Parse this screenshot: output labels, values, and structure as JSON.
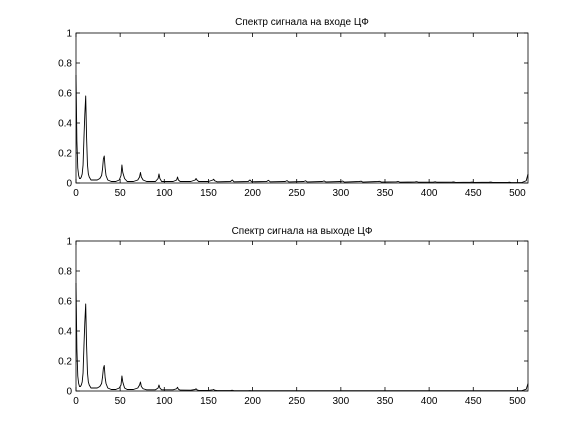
{
  "chart_data": [
    {
      "type": "line",
      "title": "Спектр сигнала на входе ЦФ",
      "xlim": [
        0,
        512
      ],
      "ylim": [
        0,
        1
      ],
      "x_ticks": [
        "0",
        "50",
        "100",
        "150",
        "200",
        "250",
        "300",
        "350",
        "400",
        "450",
        "500"
      ],
      "y_ticks": [
        "0",
        "0.2",
        "0.4",
        "0.6",
        "0.8",
        "1"
      ],
      "grid": false,
      "series": [
        {
          "values": [
            [
              0,
              0.72
            ],
            [
              1,
              0.28
            ],
            [
              2,
              0.1
            ],
            [
              3,
              0.05
            ],
            [
              4,
              0.03
            ],
            [
              5,
              0.03
            ],
            [
              6,
              0.04
            ],
            [
              7,
              0.06
            ],
            [
              8,
              0.12
            ],
            [
              9,
              0.3
            ],
            [
              10,
              0.46
            ],
            [
              11,
              0.58
            ],
            [
              12,
              0.3
            ],
            [
              13,
              0.12
            ],
            [
              14,
              0.06
            ],
            [
              15,
              0.04
            ],
            [
              17,
              0.02
            ],
            [
              20,
              0.02
            ],
            [
              24,
              0.02
            ],
            [
              27,
              0.03
            ],
            [
              29,
              0.05
            ],
            [
              30,
              0.09
            ],
            [
              31,
              0.16
            ],
            [
              32,
              0.18
            ],
            [
              33,
              0.1
            ],
            [
              34,
              0.05
            ],
            [
              36,
              0.02
            ],
            [
              40,
              0.01
            ],
            [
              45,
              0.01
            ],
            [
              49,
              0.02
            ],
            [
              51,
              0.05
            ],
            [
              52,
              0.12
            ],
            [
              53,
              0.07
            ],
            [
              55,
              0.03
            ],
            [
              58,
              0.01
            ],
            [
              65,
              0.01
            ],
            [
              70,
              0.02
            ],
            [
              72,
              0.04
            ],
            [
              73,
              0.07
            ],
            [
              74,
              0.04
            ],
            [
              76,
              0.02
            ],
            [
              80,
              0.01
            ],
            [
              90,
              0.01
            ],
            [
              93,
              0.03
            ],
            [
              94,
              0.06
            ],
            [
              95,
              0.03
            ],
            [
              97,
              0.01
            ],
            [
              110,
              0.01
            ],
            [
              114,
              0.02
            ],
            [
              115,
              0.04
            ],
            [
              116,
              0.02
            ],
            [
              118,
              0.01
            ],
            [
              130,
              0.01
            ],
            [
              135,
              0.02
            ],
            [
              136,
              0.03
            ],
            [
              137,
              0.02
            ],
            [
              139,
              0.01
            ],
            [
              150,
              0.01
            ],
            [
              155,
              0.02
            ],
            [
              156,
              0.025
            ],
            [
              157,
              0.015
            ],
            [
              160,
              0.008
            ],
            [
              175,
              0.01
            ],
            [
              177,
              0.02
            ],
            [
              179,
              0.008
            ],
            [
              195,
              0.01
            ],
            [
              197,
              0.02
            ],
            [
              199,
              0.008
            ],
            [
              216,
              0.01
            ],
            [
              218,
              0.018
            ],
            [
              220,
              0.008
            ],
            [
              237,
              0.01
            ],
            [
              239,
              0.016
            ],
            [
              241,
              0.007
            ],
            [
              258,
              0.01
            ],
            [
              260,
              0.015
            ],
            [
              262,
              0.007
            ],
            [
              279,
              0.01
            ],
            [
              281,
              0.014
            ],
            [
              283,
              0.007
            ],
            [
              300,
              0.01
            ],
            [
              302,
              0.013
            ],
            [
              304,
              0.006
            ],
            [
              321,
              0.01
            ],
            [
              323,
              0.012
            ],
            [
              325,
              0.006
            ],
            [
              342,
              0.01
            ],
            [
              344,
              0.011
            ],
            [
              346,
              0.006
            ],
            [
              363,
              0.008
            ],
            [
              365,
              0.01
            ],
            [
              367,
              0.005
            ],
            [
              384,
              0.007
            ],
            [
              386,
              0.009
            ],
            [
              388,
              0.005
            ],
            [
              405,
              0.006
            ],
            [
              407,
              0.008
            ],
            [
              409,
              0.005
            ],
            [
              426,
              0.006
            ],
            [
              428,
              0.007
            ],
            [
              430,
              0.004
            ],
            [
              447,
              0.005
            ],
            [
              449,
              0.006
            ],
            [
              451,
              0.004
            ],
            [
              468,
              0.005
            ],
            [
              470,
              0.006
            ],
            [
              472,
              0.004
            ],
            [
              489,
              0.004
            ],
            [
              491,
              0.005
            ],
            [
              493,
              0.003
            ],
            [
              505,
              0.003
            ],
            [
              510,
              0.015
            ],
            [
              512,
              0.06
            ]
          ]
        }
      ]
    },
    {
      "type": "line",
      "title": "Спектр сигнала на выходе ЦФ",
      "xlim": [
        0,
        512
      ],
      "ylim": [
        0,
        1
      ],
      "x_ticks": [
        "0",
        "50",
        "100",
        "150",
        "200",
        "250",
        "300",
        "350",
        "400",
        "450",
        "500"
      ],
      "y_ticks": [
        "0",
        "0.2",
        "0.4",
        "0.6",
        "0.8",
        "1"
      ],
      "grid": false,
      "series": [
        {
          "values": [
            [
              0,
              0.72
            ],
            [
              1,
              0.28
            ],
            [
              2,
              0.1
            ],
            [
              3,
              0.05
            ],
            [
              4,
              0.03
            ],
            [
              5,
              0.03
            ],
            [
              6,
              0.04
            ],
            [
              7,
              0.06
            ],
            [
              8,
              0.12
            ],
            [
              9,
              0.3
            ],
            [
              10,
              0.46
            ],
            [
              11,
              0.58
            ],
            [
              12,
              0.3
            ],
            [
              13,
              0.12
            ],
            [
              14,
              0.06
            ],
            [
              15,
              0.04
            ],
            [
              17,
              0.02
            ],
            [
              20,
              0.02
            ],
            [
              24,
              0.02
            ],
            [
              27,
              0.03
            ],
            [
              29,
              0.05
            ],
            [
              30,
              0.09
            ],
            [
              31,
              0.15
            ],
            [
              32,
              0.17
            ],
            [
              33,
              0.09
            ],
            [
              34,
              0.05
            ],
            [
              36,
              0.02
            ],
            [
              40,
              0.01
            ],
            [
              45,
              0.01
            ],
            [
              49,
              0.02
            ],
            [
              51,
              0.04
            ],
            [
              52,
              0.1
            ],
            [
              53,
              0.06
            ],
            [
              55,
              0.02
            ],
            [
              58,
              0.01
            ],
            [
              65,
              0.01
            ],
            [
              70,
              0.02
            ],
            [
              72,
              0.04
            ],
            [
              73,
              0.06
            ],
            [
              74,
              0.03
            ],
            [
              76,
              0.015
            ],
            [
              80,
              0.008
            ],
            [
              90,
              0.008
            ],
            [
              93,
              0.02
            ],
            [
              94,
              0.04
            ],
            [
              95,
              0.02
            ],
            [
              97,
              0.008
            ],
            [
              110,
              0.008
            ],
            [
              114,
              0.015
            ],
            [
              115,
              0.025
            ],
            [
              116,
              0.012
            ],
            [
              118,
              0.006
            ],
            [
              130,
              0.005
            ],
            [
              135,
              0.01
            ],
            [
              136,
              0.015
            ],
            [
              137,
              0.008
            ],
            [
              139,
              0.004
            ],
            [
              150,
              0.004
            ],
            [
              155,
              0.008
            ],
            [
              156,
              0.01
            ],
            [
              157,
              0.005
            ],
            [
              160,
              0.003
            ],
            [
              175,
              0.003
            ],
            [
              177,
              0.005
            ],
            [
              179,
              0.002
            ],
            [
              195,
              0.002
            ],
            [
              197,
              0.003
            ],
            [
              199,
              0.002
            ],
            [
              220,
              0.002
            ],
            [
              260,
              0.002
            ],
            [
              300,
              0.002
            ],
            [
              350,
              0.002
            ],
            [
              400,
              0.002
            ],
            [
              450,
              0.002
            ],
            [
              505,
              0.002
            ],
            [
              510,
              0.012
            ],
            [
              512,
              0.05
            ]
          ]
        }
      ]
    }
  ]
}
